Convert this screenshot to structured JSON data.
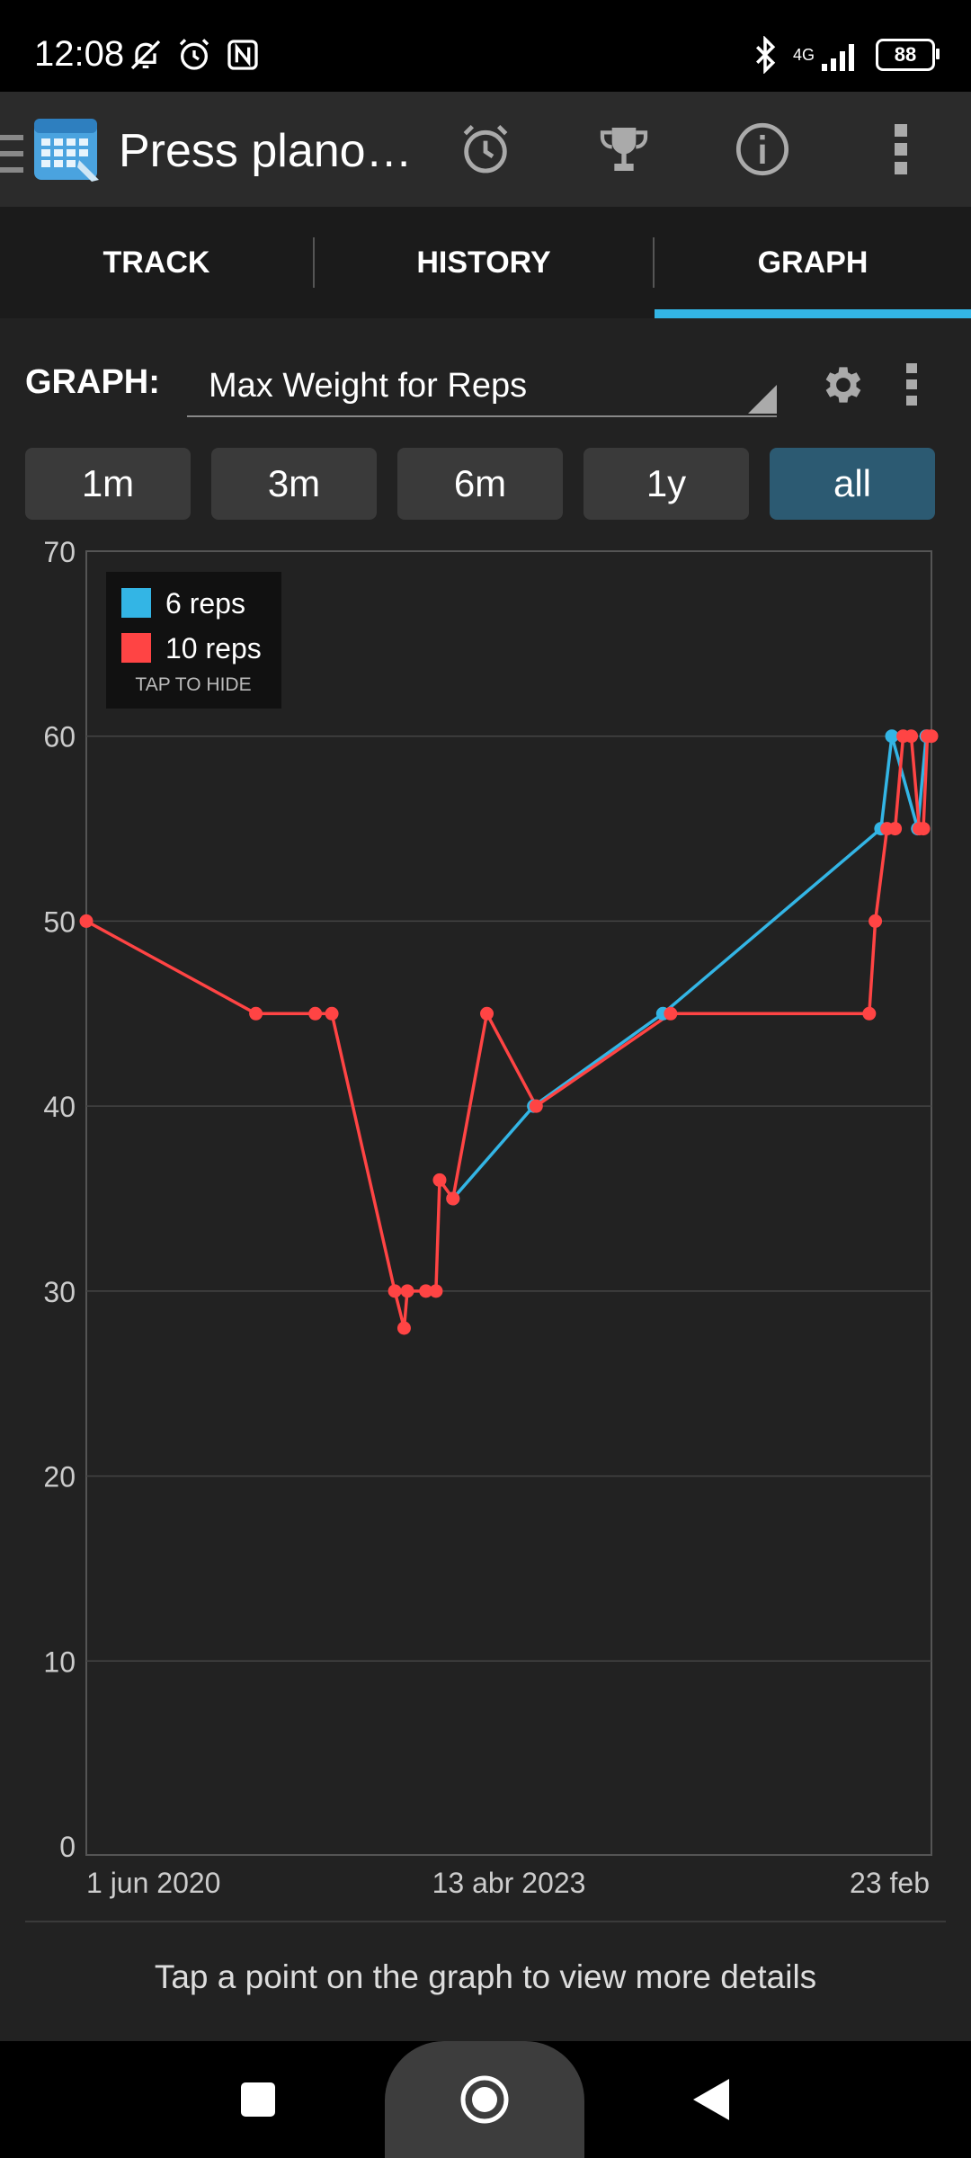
{
  "status_bar": {
    "time": "12:08",
    "network": "4G",
    "battery": "88",
    "icons": [
      "bell-off-icon",
      "alarm-icon",
      "nfc-icon",
      "bluetooth-icon",
      "signal-icon",
      "battery-icon"
    ]
  },
  "app_bar": {
    "title": "Press plano…",
    "actions": [
      "alarm-clock-icon",
      "trophy-icon",
      "info-icon",
      "more-vert-icon"
    ]
  },
  "tabs": [
    {
      "label": "TRACK",
      "selected": false
    },
    {
      "label": "HISTORY",
      "selected": false
    },
    {
      "label": "GRAPH",
      "selected": true
    }
  ],
  "graph_controls": {
    "label": "GRAPH:",
    "selected_graph": "Max Weight for Reps"
  },
  "ranges": [
    {
      "label": "1m",
      "active": false
    },
    {
      "label": "3m",
      "active": false
    },
    {
      "label": "6m",
      "active": false
    },
    {
      "label": "1y",
      "active": false
    },
    {
      "label": "all",
      "active": true
    }
  ],
  "legend": {
    "items": [
      {
        "label": "6 reps",
        "color": "#33b5e5"
      },
      {
        "label": "10 reps",
        "color": "#ff4444"
      }
    ],
    "hide_label": "TAP TO HIDE"
  },
  "chart_data": {
    "type": "line",
    "x_tick_labels": [
      "1 jun 2020",
      "13 abr 2023",
      "23 feb"
    ],
    "x_range": [
      "2020-06-01",
      "2026-02-23"
    ],
    "y_ticks": [
      0,
      10,
      20,
      30,
      40,
      50,
      60,
      70
    ],
    "ylim": [
      0,
      70
    ],
    "grid": true,
    "legend_position": "top-left",
    "series": [
      {
        "name": "6 reps",
        "color": "#33b5e5",
        "points": [
          [
            "2022-11-26",
            35
          ],
          [
            "2023-06-14",
            40
          ],
          [
            "2024-04-29",
            45
          ],
          [
            "2025-10-21",
            55
          ],
          [
            "2025-11-17",
            60
          ],
          [
            "2026-01-20",
            55
          ],
          [
            "2026-02-10",
            60
          ]
        ]
      },
      {
        "name": "10 reps",
        "color": "#ff4444",
        "points": [
          [
            "2020-06-01",
            50
          ],
          [
            "2021-07-26",
            45
          ],
          [
            "2021-12-20",
            45
          ],
          [
            "2022-01-30",
            45
          ],
          [
            "2022-07-05",
            30
          ],
          [
            "2022-07-28",
            28
          ],
          [
            "2022-08-05",
            30
          ],
          [
            "2022-09-20",
            30
          ],
          [
            "2022-10-15",
            30
          ],
          [
            "2022-10-24",
            36
          ],
          [
            "2022-11-26",
            35
          ],
          [
            "2023-02-18",
            45
          ],
          [
            "2023-06-20",
            40
          ],
          [
            "2024-05-18",
            45
          ],
          [
            "2025-09-22",
            45
          ],
          [
            "2025-10-07",
            50
          ],
          [
            "2025-11-05",
            55
          ],
          [
            "2025-11-25",
            55
          ],
          [
            "2025-12-15",
            60
          ],
          [
            "2026-01-04",
            60
          ],
          [
            "2026-01-24",
            55
          ],
          [
            "2026-02-03",
            55
          ],
          [
            "2026-02-13",
            60
          ],
          [
            "2026-02-23",
            60
          ]
        ]
      }
    ]
  },
  "hint": "Tap a point on the graph to view more details",
  "nav_bar": [
    "recents-square-icon",
    "home-circle-icon",
    "back-triangle-icon"
  ]
}
